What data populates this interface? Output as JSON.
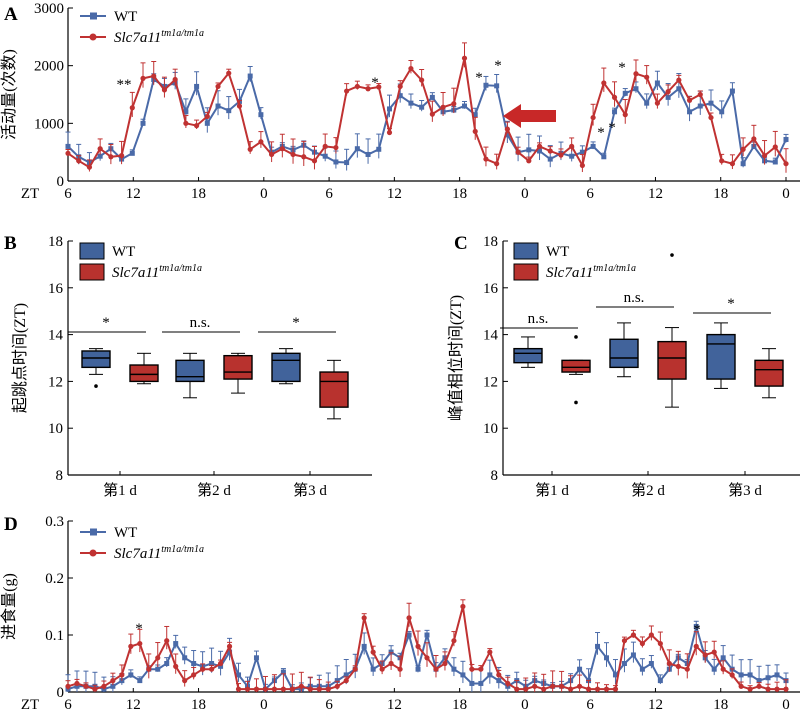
{
  "colors": {
    "wt": "#4a6aa8",
    "mut": "#c03232",
    "wt_fill": "#41639b",
    "mut_fill": "#b8322e",
    "arrow": "#c82828"
  },
  "panel_labels": {
    "A": "A",
    "B": "B",
    "C": "C",
    "D": "D"
  },
  "legend": {
    "wt": "WT",
    "mut_base": "Slc7a11",
    "mut_sup": "tm1a/tm1a"
  },
  "x_axis": {
    "prefix": "ZT",
    "ticks": [
      "6",
      "12",
      "18",
      "0",
      "6",
      "12",
      "18",
      "0",
      "6",
      "12",
      "18",
      "0"
    ]
  },
  "chart_data": [
    {
      "id": "A",
      "type": "line",
      "ylabel": "活动量(次数)",
      "ylim": [
        0,
        3000
      ],
      "yticks": [
        "0",
        "1000",
        "2000",
        "3000"
      ],
      "legend_placement": "top-left",
      "annotations": [
        "**",
        "*",
        "*",
        "*",
        "*",
        "*",
        "*"
      ],
      "arrow_annotation": "red arrow pointing left at ZT 0 (second day)",
      "series": [
        {
          "name": "WT",
          "values": [
            600,
            420,
            320,
            430,
            560,
            380,
            480,
            1000,
            1760,
            1640,
            1700,
            1200,
            1640,
            1000,
            1300,
            1220,
            1380,
            1820,
            1150,
            500,
            600,
            540,
            620,
            500,
            430,
            330,
            320,
            560,
            460,
            550,
            1250,
            1480,
            1350,
            1280,
            1450,
            1200,
            1230,
            1300,
            1150,
            1660,
            1650,
            800,
            500,
            540,
            520,
            380,
            480,
            430,
            500,
            600,
            420,
            1200,
            1520,
            1600,
            1350,
            1700,
            1450,
            1600,
            1200,
            1300,
            1350,
            1200,
            1560,
            300,
            600,
            350,
            330,
            720
          ]
        },
        {
          "name": "Slc7a11tm1a/tm1a",
          "values": [
            480,
            350,
            240,
            560,
            420,
            440,
            1270,
            1780,
            1820,
            1580,
            1760,
            1000,
            960,
            1120,
            1640,
            1870,
            1300,
            550,
            680,
            460,
            560,
            460,
            420,
            350,
            600,
            580,
            1560,
            1640,
            1600,
            1630,
            840,
            1640,
            1950,
            1750,
            1160,
            1280,
            1340,
            2130,
            860,
            380,
            300,
            900,
            500,
            350,
            600,
            520,
            450,
            600,
            270,
            1100,
            1700,
            1450,
            1150,
            1860,
            1800,
            1350,
            1550,
            1750,
            1400,
            1500,
            1100,
            350,
            300,
            550,
            730,
            440,
            590,
            300
          ]
        }
      ]
    },
    {
      "id": "B",
      "type": "box",
      "ylabel": "起跳点时间(ZT)",
      "ylim": [
        8,
        18
      ],
      "yticks": [
        "8",
        "10",
        "12",
        "14",
        "16",
        "18"
      ],
      "categories": [
        "第1 d",
        "第2 d",
        "第3 d"
      ],
      "significance": [
        "*",
        "n.s.",
        "*"
      ],
      "legend_placement": "top-left",
      "series": [
        {
          "name": "WT",
          "boxes": [
            {
              "min": 12.3,
              "q1": 12.6,
              "median": 13.0,
              "q3": 13.3,
              "max": 13.4,
              "outliers": [
                11.8
              ]
            },
            {
              "min": 11.3,
              "q1": 12.0,
              "median": 12.2,
              "q3": 12.9,
              "max": 13.2,
              "outliers": []
            },
            {
              "min": 11.9,
              "q1": 12.0,
              "median": 12.9,
              "q3": 13.2,
              "max": 13.4,
              "outliers": []
            }
          ]
        },
        {
          "name": "Slc7a11tm1a/tm1a",
          "boxes": [
            {
              "min": 11.9,
              "q1": 12.0,
              "median": 12.3,
              "q3": 12.7,
              "max": 13.2,
              "outliers": []
            },
            {
              "min": 11.5,
              "q1": 12.1,
              "median": 12.4,
              "q3": 13.1,
              "max": 13.2,
              "outliers": []
            },
            {
              "min": 10.4,
              "q1": 10.9,
              "median": 12.0,
              "q3": 12.4,
              "max": 12.9,
              "outliers": []
            }
          ]
        }
      ]
    },
    {
      "id": "C",
      "type": "box",
      "ylabel": "峰值相位时间(ZT)",
      "ylim": [
        8,
        18
      ],
      "yticks": [
        "8",
        "10",
        "12",
        "14",
        "16",
        "18"
      ],
      "categories": [
        "第1 d",
        "第2 d",
        "第3 d"
      ],
      "significance": [
        "n.s.",
        "n.s.",
        "*"
      ],
      "legend_placement": "top-left",
      "series": [
        {
          "name": "WT",
          "boxes": [
            {
              "min": 12.6,
              "q1": 12.8,
              "median": 13.2,
              "q3": 13.4,
              "max": 13.9,
              "outliers": []
            },
            {
              "min": 12.2,
              "q1": 12.6,
              "median": 13.0,
              "q3": 13.8,
              "max": 14.5,
              "outliers": []
            },
            {
              "min": 11.7,
              "q1": 12.1,
              "median": 13.6,
              "q3": 14.0,
              "max": 14.5,
              "outliers": []
            }
          ]
        },
        {
          "name": "Slc7a11tm1a/tm1a",
          "boxes": [
            {
              "min": 12.3,
              "q1": 12.4,
              "median": 12.6,
              "q3": 12.9,
              "max": 12.9,
              "outliers": [
                13.9,
                11.1
              ]
            },
            {
              "min": 10.9,
              "q1": 12.1,
              "median": 13.0,
              "q3": 13.7,
              "max": 14.3,
              "outliers": [
                17.4
              ]
            },
            {
              "min": 11.3,
              "q1": 11.8,
              "median": 12.5,
              "q3": 12.9,
              "max": 13.4,
              "outliers": []
            }
          ]
        }
      ]
    },
    {
      "id": "D",
      "type": "line",
      "ylabel": "进食量(g)",
      "ylim": [
        0,
        0.3
      ],
      "yticks": [
        "0",
        "0.1",
        "0.2",
        "0.3"
      ],
      "legend_placement": "top-left",
      "annotations": [
        "*",
        "*"
      ],
      "series": [
        {
          "name": "WT",
          "values": [
            0.005,
            0.01,
            0.01,
            0.01,
            0.005,
            0.01,
            0.02,
            0.03,
            0.02,
            0.04,
            0.04,
            0.05,
            0.085,
            0.06,
            0.05,
            0.045,
            0.05,
            0.045,
            0.07,
            0.03,
            0.01,
            0.06,
            0.005,
            0.02,
            0.035,
            0.005,
            0.005,
            0.01,
            0.01,
            0.01,
            0.02,
            0.03,
            0.04,
            0.08,
            0.04,
            0.05,
            0.07,
            0.06,
            0.1,
            0.04,
            0.1,
            0.04,
            0.06,
            0.04,
            0.03,
            0.015,
            0.015,
            0.03,
            0.02,
            0.01,
            0.02,
            0.01,
            0.02,
            0.015,
            0.01,
            0.01,
            0.02,
            0.04,
            0.02,
            0.08,
            0.06,
            0.03,
            0.05,
            0.065,
            0.04,
            0.05,
            0.02,
            0.04,
            0.06,
            0.05,
            0.115,
            0.06,
            0.04,
            0.06,
            0.04,
            0.03,
            0.03,
            0.02,
            0.025,
            0.03,
            0.02
          ]
        },
        {
          "name": "Slc7a11tm1a/tm1a",
          "values": [
            0.01,
            0.015,
            0.01,
            0.005,
            0.01,
            0.02,
            0.03,
            0.08,
            0.085,
            0.04,
            0.06,
            0.09,
            0.045,
            0.02,
            0.03,
            0.04,
            0.04,
            0.05,
            0.08,
            0.005,
            0.005,
            0.005,
            0.005,
            0.005,
            0.005,
            0.005,
            0.01,
            0.005,
            0.005,
            0.005,
            0.01,
            0.02,
            0.04,
            0.13,
            0.07,
            0.04,
            0.05,
            0.04,
            0.13,
            0.08,
            0.06,
            0.04,
            0.05,
            0.09,
            0.15,
            0.04,
            0.04,
            0.07,
            0.03,
            0.015,
            0.005,
            0.005,
            0.01,
            0.005,
            0.01,
            0.01,
            0.005,
            0.01,
            0.005,
            0.005,
            0.005,
            0.005,
            0.09,
            0.1,
            0.085,
            0.1,
            0.085,
            0.05,
            0.045,
            0.04,
            0.08,
            0.065,
            0.07,
            0.04,
            0.03,
            0.01,
            0.005,
            0.01,
            0.005,
            0.005,
            0.005
          ]
        }
      ]
    }
  ]
}
